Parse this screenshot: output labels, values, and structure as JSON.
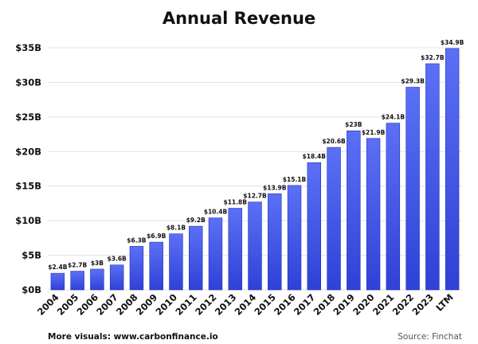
{
  "chart_data": {
    "type": "bar",
    "title": "Annual Revenue",
    "categories": [
      "2004",
      "2005",
      "2006",
      "2007",
      "2008",
      "2009",
      "2010",
      "2011",
      "2012",
      "2013",
      "2014",
      "2015",
      "2016",
      "2017",
      "2018",
      "2019",
      "2020",
      "2021",
      "2022",
      "2023",
      "LTM"
    ],
    "values": [
      2.4,
      2.7,
      3.0,
      3.6,
      6.3,
      6.9,
      8.1,
      9.2,
      10.4,
      11.8,
      12.7,
      13.9,
      15.1,
      18.4,
      20.6,
      23.0,
      21.9,
      24.1,
      29.3,
      32.7,
      34.9
    ],
    "data_labels": [
      "$2.4B",
      "$2.7B",
      "$3B",
      "$3.6B",
      "$6.3B",
      "$6.9B",
      "$8.1B",
      "$9.2B",
      "$10.4B",
      "$11.8B",
      "$12.7B",
      "$13.9B",
      "$15.1B",
      "$18.4B",
      "$20.6B",
      "$23B",
      "$21.9B",
      "$24.1B",
      "$29.3B",
      "$32.7B",
      "$34.9B"
    ],
    "y_ticks": [
      0,
      5,
      10,
      15,
      20,
      25,
      30,
      35
    ],
    "y_tick_labels": [
      "$0B",
      "$5B",
      "$10B",
      "$15B",
      "$20B",
      "$25B",
      "$30B",
      "$35B"
    ],
    "ylim": [
      0,
      35
    ],
    "xlabel": "",
    "ylabel": "",
    "grid": true,
    "legend": false,
    "colors": {
      "bar_top": "#5b70f5",
      "bar_bottom": "#2f41d6",
      "bar_edge": "#2433b8"
    }
  },
  "footer": {
    "left": "More visuals: www.carbonfinance.io",
    "right": "Source: Finchat"
  }
}
